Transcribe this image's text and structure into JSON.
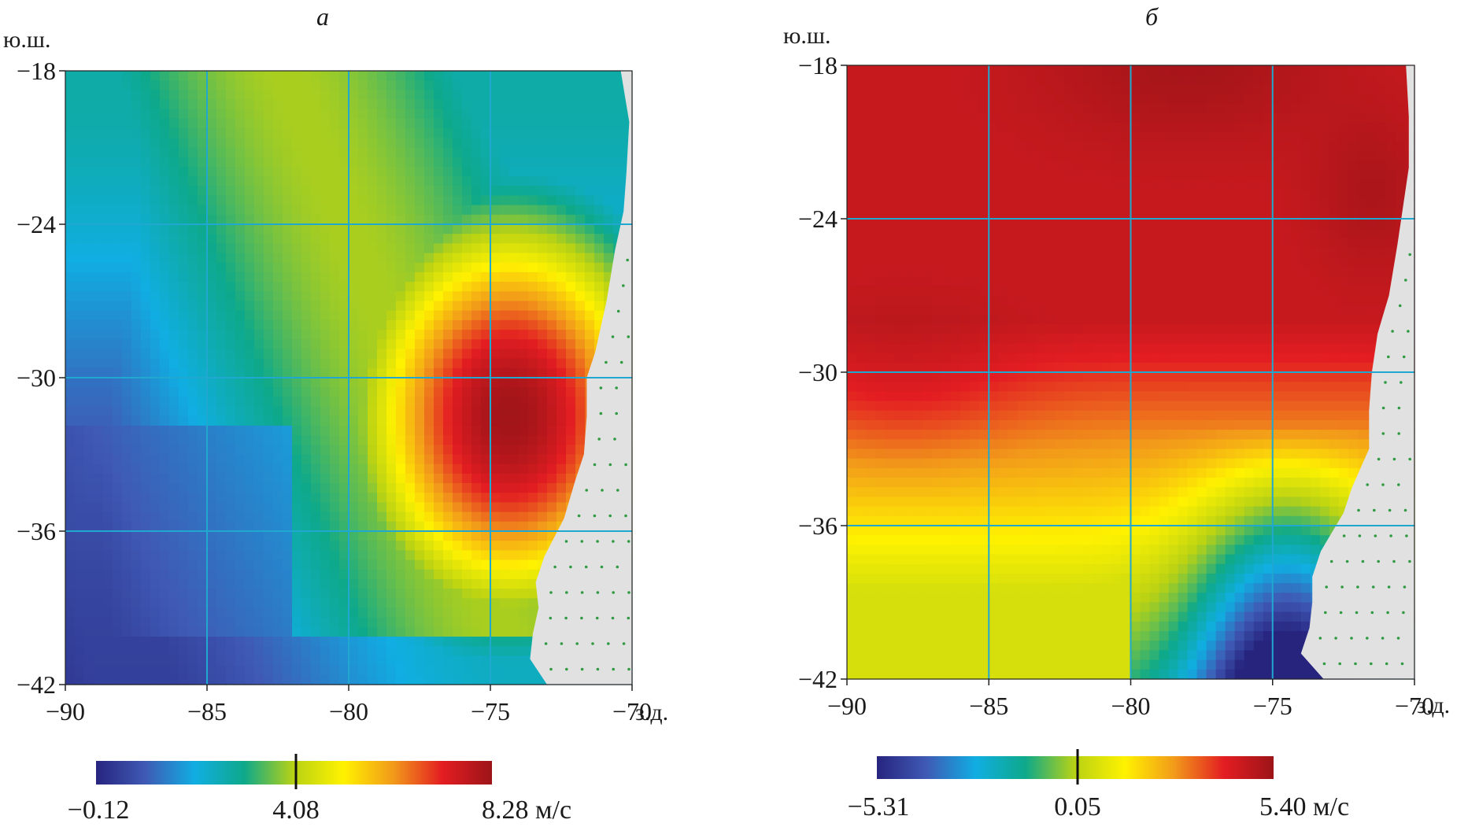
{
  "chart_data": [
    {
      "type": "heatmap",
      "panel_label": "а",
      "lat_unit_label": "ю.ш.",
      "lon_unit_label": "з.д.",
      "x_ticks": [
        -90,
        -85,
        -80,
        -75,
        -70
      ],
      "x_tick_labels": [
        "−90",
        "−85",
        "−80",
        "−75",
        "−70"
      ],
      "y_ticks": [
        -18,
        -24,
        -30,
        -36,
        -42
      ],
      "y_tick_labels": [
        "−18",
        "−24",
        "−30",
        "−36",
        "−42"
      ],
      "xlim": [
        -90,
        -70
      ],
      "ylim": [
        -42,
        -18
      ],
      "grid": true,
      "colorbar": {
        "min": -0.12,
        "max": 8.28,
        "mid": 4.08,
        "min_label": "−0.12",
        "mid_label": "4.08",
        "max_label": "8.28 м/с"
      },
      "field": {
        "description_points": [
          {
            "lon": -73.5,
            "lat": -32.5,
            "value": 8.28
          },
          {
            "lon": -75.5,
            "lat": -29.5,
            "value": 7.3
          },
          {
            "lon": -76.5,
            "lat": -36.0,
            "value": 6.8
          },
          {
            "lon": -80.5,
            "lat": -27.0,
            "value": 5.2
          },
          {
            "lon": -82.0,
            "lat": -22.0,
            "value": 4.1
          },
          {
            "lon": -86.0,
            "lat": -20.0,
            "value": 3.0
          },
          {
            "lon": -88.5,
            "lat": -26.0,
            "value": 2.0
          },
          {
            "lon": -88.0,
            "lat": -36.0,
            "value": 0.5
          },
          {
            "lon": -84.0,
            "lat": -41.0,
            "value": 0.3
          }
        ]
      }
    },
    {
      "type": "heatmap",
      "panel_label": "б",
      "lat_unit_label": "ю.ш.",
      "lon_unit_label": "з.д.",
      "x_ticks": [
        -90,
        -85,
        -80,
        -75,
        -70
      ],
      "x_tick_labels": [
        "−90",
        "−85",
        "−80",
        "−75",
        "−70"
      ],
      "y_ticks": [
        -18,
        -24,
        -30,
        -36,
        -42
      ],
      "y_tick_labels": [
        "−18",
        "−24",
        "−30",
        "−36",
        "−42"
      ],
      "xlim": [
        -90,
        -70
      ],
      "ylim": [
        -42,
        -18
      ],
      "grid": true,
      "colorbar": {
        "min": -5.31,
        "max": 5.4,
        "mid": 0.05,
        "min_label": "−5.31",
        "mid_label": "0.05",
        "max_label": "5.40 м/с"
      },
      "field": {
        "description_points": [
          {
            "lon": -79.0,
            "lat": -18.5,
            "value": 5.4
          },
          {
            "lon": -72.0,
            "lat": -22.5,
            "value": 5.0
          },
          {
            "lon": -85.0,
            "lat": -21.0,
            "value": 4.6
          },
          {
            "lon": -80.0,
            "lat": -27.0,
            "value": 3.2
          },
          {
            "lon": -88.0,
            "lat": -30.5,
            "value": 2.2
          },
          {
            "lon": -82.0,
            "lat": -33.0,
            "value": 1.0
          },
          {
            "lon": -86.0,
            "lat": -38.5,
            "value": 0.5
          },
          {
            "lon": -77.0,
            "lat": -35.0,
            "value": -1.5
          },
          {
            "lon": -74.0,
            "lat": -40.0,
            "value": -5.31
          }
        ]
      }
    }
  ],
  "colors": {
    "grid": "#20a8d0",
    "land": "#e1e1e1",
    "land_dots": "#2f9a42",
    "colormap": [
      "#27247e",
      "#3f5ab5",
      "#10aee2",
      "#0ea98a",
      "#b9d214",
      "#fff200",
      "#f29a1a",
      "#e31d22",
      "#9c1418"
    ]
  }
}
